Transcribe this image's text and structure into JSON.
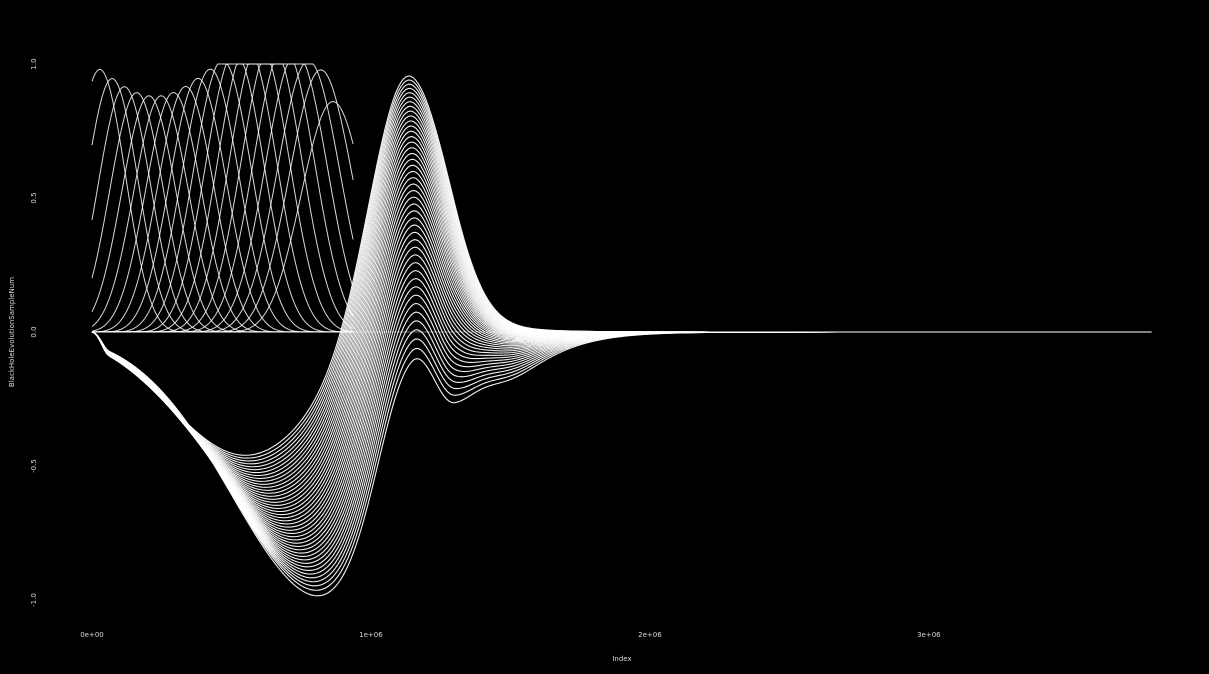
{
  "chart_data": {
    "type": "line",
    "title": "",
    "xlabel": "Index",
    "ylabel": "BlackHoleEvolutionSampleNum",
    "xlim": [
      0,
      3800000
    ],
    "ylim": [
      -1.0,
      1.0
    ],
    "x_ticks": [
      "0e+00",
      "1e+06",
      "2e+06",
      "3e+06"
    ],
    "x_tick_values": [
      0,
      1000000,
      2000000,
      3000000
    ],
    "y_ticks": [
      "-1.0",
      "-0.5",
      "0.0",
      "0.5",
      "1.0"
    ],
    "y_tick_values": [
      -1.0,
      -0.5,
      0.0,
      0.5,
      1.0
    ],
    "grid": false,
    "legend": "none",
    "background_color": "#000000",
    "line_color": "#ffffff",
    "family_1": {
      "description_of_shape": "rising oscillation bursts near the start that end in a 0.86 peak",
      "count": 20,
      "x_start": 0,
      "x_end": 940000,
      "peak_y": 1.0,
      "final_peak_y": 0.86
    },
    "family_2": {
      "count": 44,
      "x_start": 0,
      "x_end": 3800000,
      "min_y_first": -1.0,
      "min_y_last": -0.46,
      "max_y_first": 0.56,
      "max_y_last": 1.0,
      "max_x": 1130000,
      "tail_y": 0.0
    }
  }
}
